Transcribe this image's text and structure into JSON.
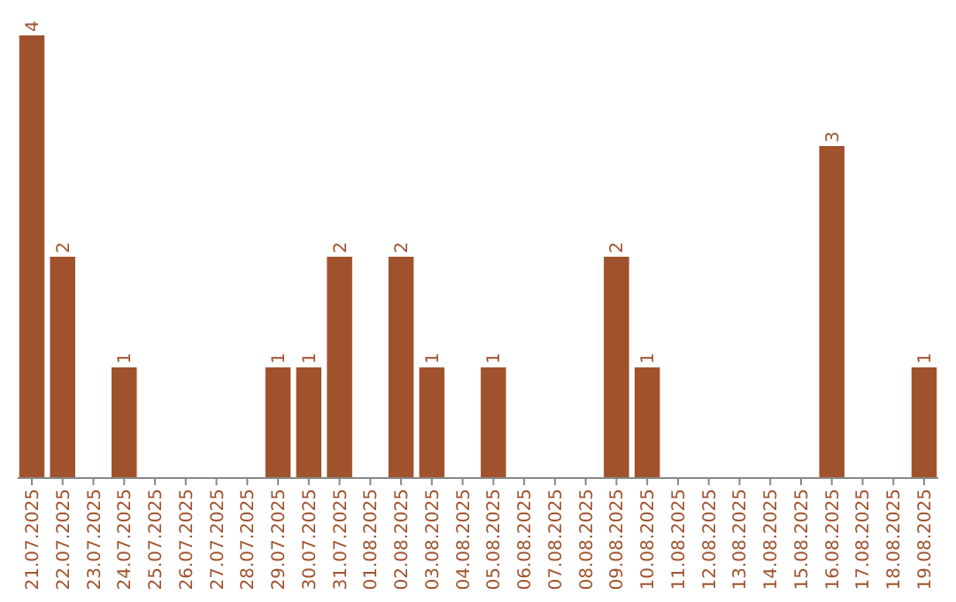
{
  "chart_data": {
    "type": "bar",
    "categories": [
      "21.07.2025",
      "22.07.2025",
      "23.07.2025",
      "24.07.2025",
      "25.07.2025",
      "26.07.2025",
      "27.07.2025",
      "28.07.2025",
      "29.07.2025",
      "30.07.2025",
      "31.07.2025",
      "01.08.2025",
      "02.08.2025",
      "03.08.2025",
      "04.08.2025",
      "05.08.2025",
      "06.08.2025",
      "07.08.2025",
      "08.08.2025",
      "09.08.2025",
      "10.08.2025",
      "11.08.2025",
      "12.08.2025",
      "13.08.2025",
      "14.08.2025",
      "15.08.2025",
      "16.08.2025",
      "17.08.2025",
      "18.08.2025",
      "19.08.2025"
    ],
    "values": [
      4,
      2,
      null,
      1,
      null,
      null,
      null,
      null,
      1,
      1,
      2,
      null,
      2,
      1,
      null,
      1,
      null,
      null,
      null,
      2,
      1,
      null,
      null,
      null,
      null,
      null,
      3,
      null,
      null,
      1
    ],
    "data_labels": true,
    "color": "#a0522d"
  }
}
